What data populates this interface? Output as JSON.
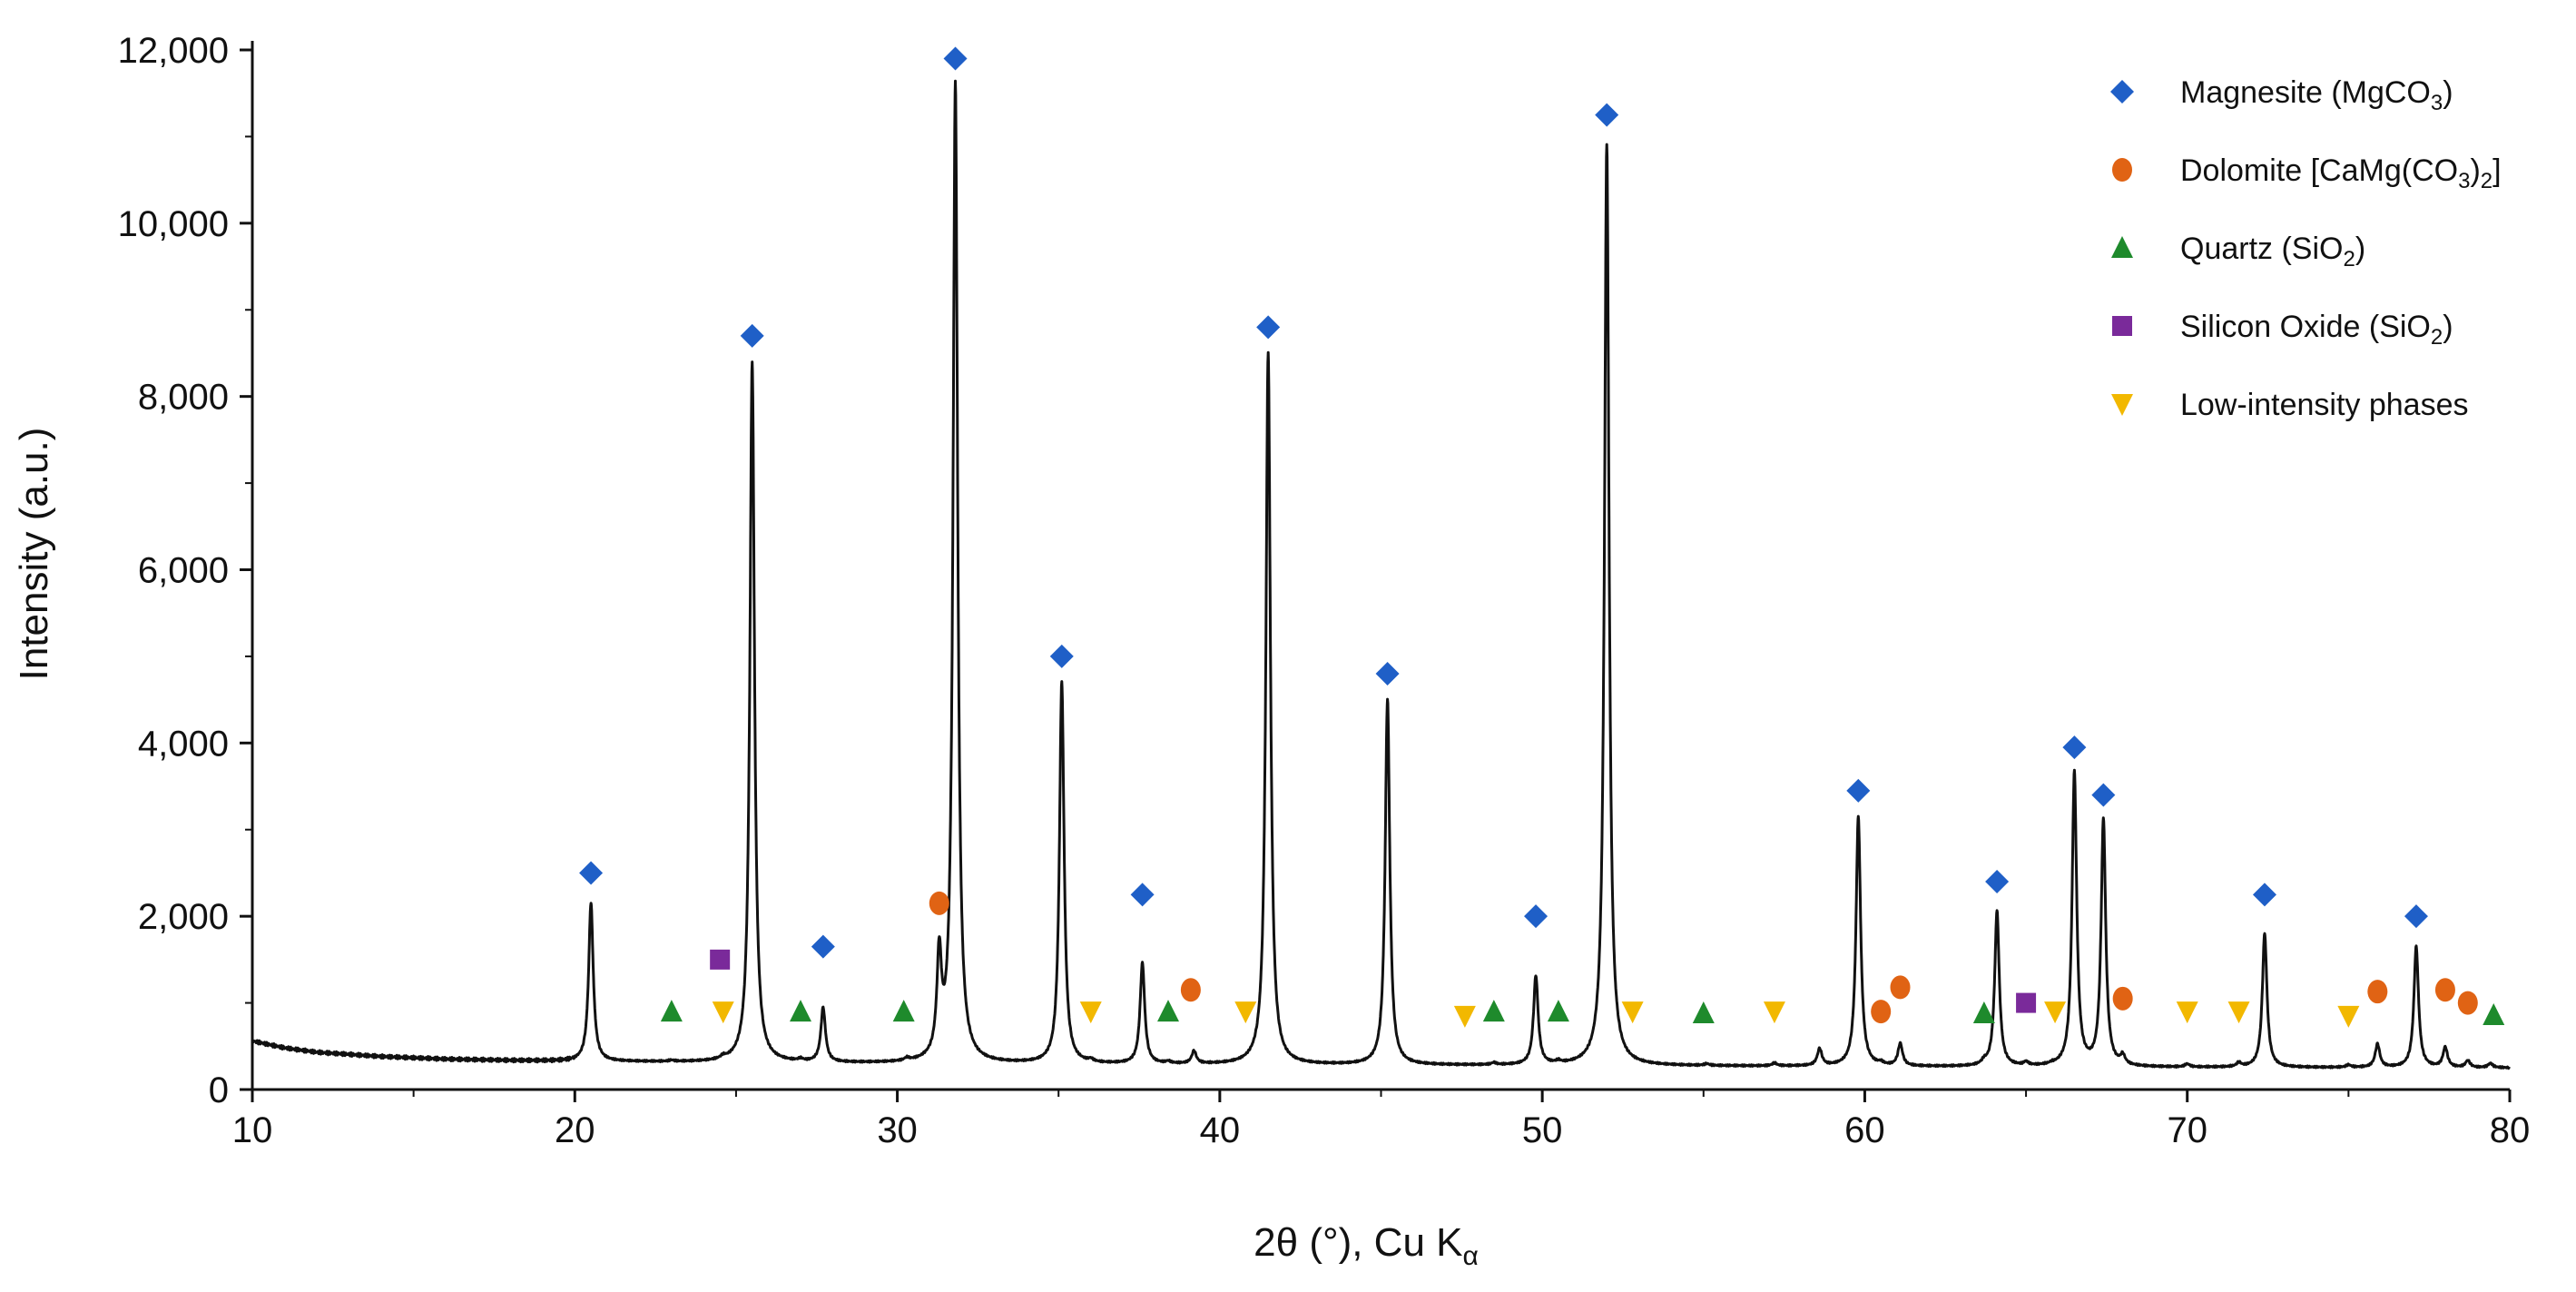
{
  "chart_data": {
    "type": "line",
    "xlabel": {
      "pre": "2θ (°), Cu K",
      "sub": "α"
    },
    "ylabel": "Intensity (a.u.)",
    "xlim": [
      10,
      80
    ],
    "ylim": [
      0,
      12000
    ],
    "x_ticks": [
      10,
      20,
      30,
      40,
      50,
      60,
      70,
      80
    ],
    "x_tick_labels": [
      "10",
      "20",
      "30",
      "40",
      "50",
      "60",
      "70",
      "80"
    ],
    "y_ticks": [
      0,
      2000,
      4000,
      6000,
      8000,
      10000,
      12000
    ],
    "y_tick_labels": [
      "0",
      "2,000",
      "4,000",
      "6,000",
      "8,000",
      "10,000",
      "12,000"
    ],
    "grid": false,
    "legend_position": "top-right",
    "trace_color": "#111111",
    "background": {
      "points": [
        [
          10,
          560
        ],
        [
          11,
          480
        ],
        [
          12,
          430
        ],
        [
          14,
          380
        ],
        [
          16,
          350
        ],
        [
          18,
          335
        ],
        [
          20,
          325
        ],
        [
          25,
          310
        ],
        [
          30,
          300
        ],
        [
          40,
          285
        ],
        [
          50,
          275
        ],
        [
          60,
          265
        ],
        [
          70,
          255
        ],
        [
          80,
          250
        ]
      ]
    },
    "peaks": [
      {
        "x": 20.5,
        "y": 2150
      },
      {
        "x": 23.0,
        "y": 330
      },
      {
        "x": 24.6,
        "y": 340
      },
      {
        "x": 25.5,
        "y": 8400
      },
      {
        "x": 27.0,
        "y": 330
      },
      {
        "x": 27.7,
        "y": 930
      },
      {
        "x": 30.3,
        "y": 330
      },
      {
        "x": 31.3,
        "y": 1450
      },
      {
        "x": 31.8,
        "y": 11600
      },
      {
        "x": 35.1,
        "y": 4700
      },
      {
        "x": 36.0,
        "y": 320
      },
      {
        "x": 37.6,
        "y": 1450
      },
      {
        "x": 38.4,
        "y": 310
      },
      {
        "x": 39.2,
        "y": 430
      },
      {
        "x": 41.5,
        "y": 8500
      },
      {
        "x": 45.2,
        "y": 4500
      },
      {
        "x": 48.5,
        "y": 300
      },
      {
        "x": 49.8,
        "y": 1300
      },
      {
        "x": 50.5,
        "y": 300
      },
      {
        "x": 52.0,
        "y": 10900
      },
      {
        "x": 55.1,
        "y": 290
      },
      {
        "x": 57.2,
        "y": 300
      },
      {
        "x": 58.6,
        "y": 460
      },
      {
        "x": 59.8,
        "y": 3150
      },
      {
        "x": 60.5,
        "y": 290
      },
      {
        "x": 61.1,
        "y": 520
      },
      {
        "x": 63.7,
        "y": 300
      },
      {
        "x": 64.1,
        "y": 2050
      },
      {
        "x": 65.0,
        "y": 300
      },
      {
        "x": 65.8,
        "y": 270
      },
      {
        "x": 66.5,
        "y": 3650
      },
      {
        "x": 67.4,
        "y": 3100
      },
      {
        "x": 68.0,
        "y": 360
      },
      {
        "x": 70.0,
        "y": 290
      },
      {
        "x": 71.6,
        "y": 300
      },
      {
        "x": 72.4,
        "y": 1800
      },
      {
        "x": 75.0,
        "y": 280
      },
      {
        "x": 75.9,
        "y": 520
      },
      {
        "x": 77.1,
        "y": 1650
      },
      {
        "x": 78.0,
        "y": 480
      },
      {
        "x": 78.7,
        "y": 330
      },
      {
        "x": 79.4,
        "y": 300
      }
    ],
    "series": [
      {
        "name": "Magnesite (MgCO",
        "name_sub": "3",
        "name_post": ")",
        "marker": "diamond",
        "color": "#1f5fc7",
        "points": [
          [
            20.5,
            2500
          ],
          [
            25.5,
            8700
          ],
          [
            27.7,
            1650
          ],
          [
            31.8,
            11900
          ],
          [
            35.1,
            5000
          ],
          [
            37.6,
            2250
          ],
          [
            41.5,
            8800
          ],
          [
            45.2,
            4800
          ],
          [
            49.8,
            2000
          ],
          [
            52.0,
            11250
          ],
          [
            59.8,
            3450
          ],
          [
            64.1,
            2400
          ],
          [
            66.5,
            3950
          ],
          [
            67.4,
            3400
          ],
          [
            72.4,
            2250
          ],
          [
            77.1,
            2000
          ]
        ]
      },
      {
        "name": "Dolomite [CaMg(CO",
        "name_sub": "3",
        "name_post": ")",
        "name_sub2": "2",
        "name_post2": "]",
        "marker": "circle",
        "color": "#e06314",
        "points": [
          [
            31.3,
            2150
          ],
          [
            39.1,
            1150
          ],
          [
            60.5,
            900
          ],
          [
            61.1,
            1180
          ],
          [
            68.0,
            1050
          ],
          [
            75.9,
            1130
          ],
          [
            78.0,
            1150
          ],
          [
            78.7,
            1000
          ]
        ]
      },
      {
        "name": "Quartz (SiO",
        "name_sub": "2",
        "name_post": ")",
        "marker": "triangle-up",
        "color": "#1e8a2c",
        "points": [
          [
            23.0,
            900
          ],
          [
            27.0,
            900
          ],
          [
            30.2,
            900
          ],
          [
            38.4,
            900
          ],
          [
            48.5,
            900
          ],
          [
            50.5,
            900
          ],
          [
            55.0,
            880
          ],
          [
            63.7,
            880
          ],
          [
            79.5,
            860
          ]
        ]
      },
      {
        "name": "Silicon Oxide (SiO",
        "name_sub": "2",
        "name_post": ")",
        "marker": "square",
        "color": "#7a2a9a",
        "points": [
          [
            24.5,
            1500
          ],
          [
            65.0,
            1000
          ]
        ]
      },
      {
        "name": "Low-intensity phases",
        "marker": "triangle-down",
        "color": "#f2b800",
        "points": [
          [
            24.6,
            900
          ],
          [
            36.0,
            900
          ],
          [
            40.8,
            900
          ],
          [
            47.6,
            850
          ],
          [
            52.8,
            900
          ],
          [
            57.2,
            900
          ],
          [
            65.9,
            900
          ],
          [
            70.0,
            900
          ],
          [
            71.6,
            900
          ],
          [
            75.0,
            850
          ]
        ]
      }
    ]
  }
}
